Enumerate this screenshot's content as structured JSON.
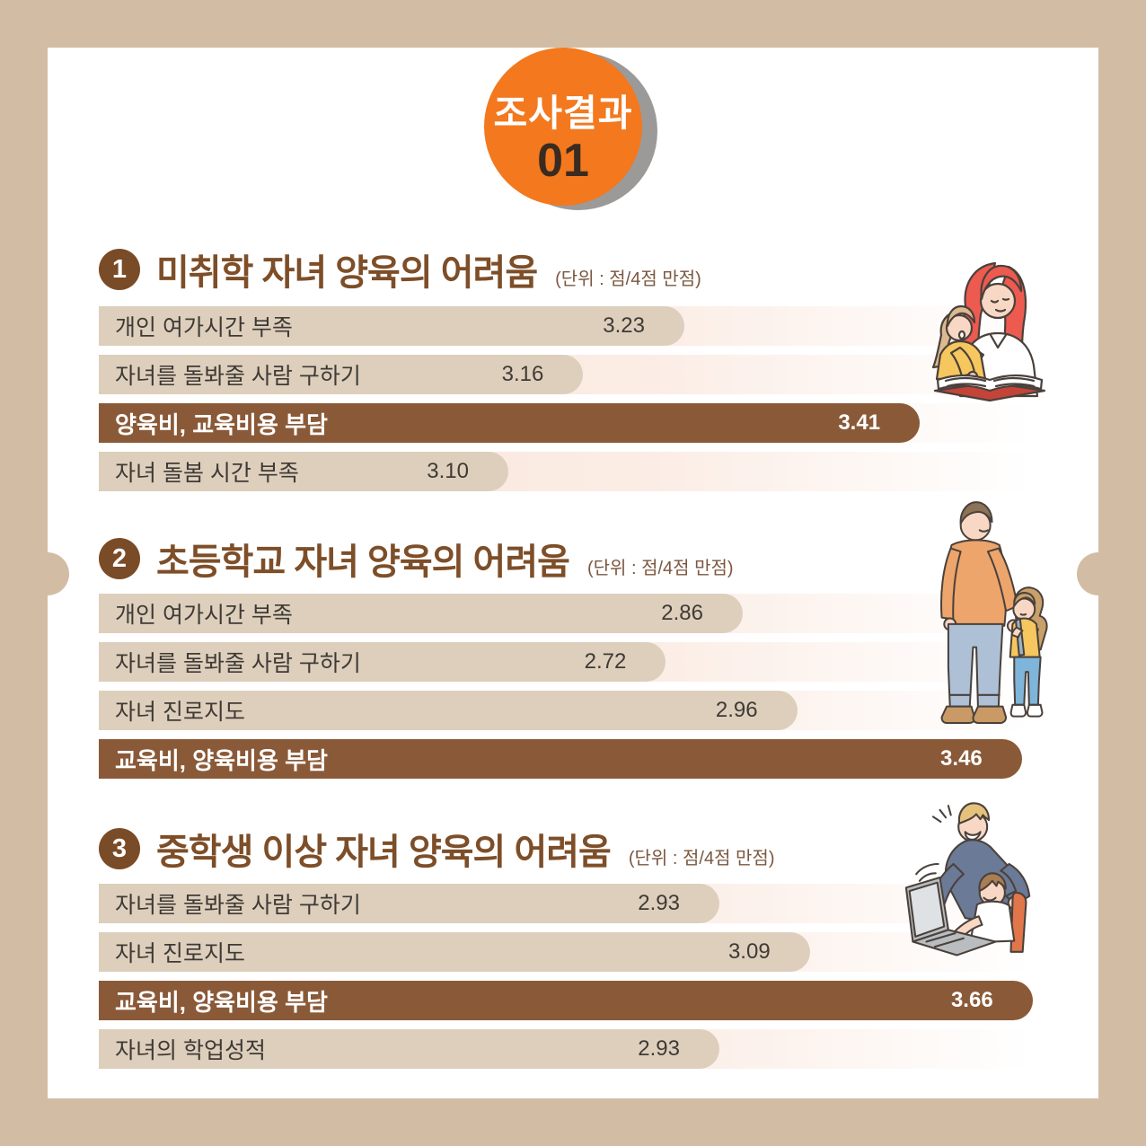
{
  "badge": {
    "label": "조사결과",
    "number": "01"
  },
  "colors": {
    "background": "#d2bda4",
    "card": "#ffffff",
    "accent_orange": "#f3781e",
    "badge_shadow": "#9b9a99",
    "title_brown": "#7d4e28",
    "number_circle_brown": "#7a4b27",
    "highlight_bar_brown": "#8a5a38",
    "bar_fill_beige": "#ddcfbc",
    "bar_text": "#3f3a36",
    "track_pink": "#f7e5dd"
  },
  "chart_data": [
    {
      "type": "bar",
      "section_number": "1",
      "title": "미취학 자녀 양육의 어려움",
      "unit": "(단위 : 점/4점 만점)",
      "value_range": [
        0,
        4
      ],
      "highlight_index": 2,
      "rows": [
        {
          "label": "개인 여가시간 부족",
          "value": 3.23,
          "display": "3.23",
          "width_pct": 60.2,
          "highlight": false
        },
        {
          "label": "자녀를 돌봐줄 사람 구하기",
          "value": 3.16,
          "display": "3.16",
          "width_pct": 49.8,
          "highlight": false
        },
        {
          "label": "양육비, 교육비용 부담",
          "value": 3.41,
          "display": "3.41",
          "width_pct": 84.4,
          "highlight": true
        },
        {
          "label": "자녀 돌봄 시간 부족",
          "value": 3.1,
          "display": "3.10",
          "width_pct": 42.1,
          "highlight": false
        }
      ]
    },
    {
      "type": "bar",
      "section_number": "2",
      "title": "초등학교 자녀 양육의 어려움",
      "unit": "(단위 : 점/4점 만점)",
      "value_range": [
        0,
        4
      ],
      "highlight_index": 3,
      "rows": [
        {
          "label": "개인 여가시간 부족",
          "value": 2.86,
          "display": "2.86",
          "width_pct": 66.2,
          "highlight": false
        },
        {
          "label": "자녀를 돌봐줄 사람 구하기",
          "value": 2.72,
          "display": "2.72",
          "width_pct": 58.3,
          "highlight": false
        },
        {
          "label": "자녀 진로지도",
          "value": 2.96,
          "display": "2.96",
          "width_pct": 71.8,
          "highlight": false
        },
        {
          "label": "교육비, 양육비용 부담",
          "value": 3.46,
          "display": "3.46",
          "width_pct": 94.9,
          "highlight": true
        }
      ]
    },
    {
      "type": "bar",
      "section_number": "3",
      "title": "중학생 이상 자녀 양육의 어려움",
      "unit": "(단위 : 점/4점 만점)",
      "value_range": [
        0,
        4
      ],
      "highlight_index": 2,
      "rows": [
        {
          "label": "자녀를 돌봐줄 사람 구하기",
          "value": 2.93,
          "display": "2.93",
          "width_pct": 63.8,
          "highlight": false
        },
        {
          "label": "자녀 진로지도",
          "value": 3.09,
          "display": "3.09",
          "width_pct": 73.1,
          "highlight": false
        },
        {
          "label": "교육비, 양육비용 부담",
          "value": 3.66,
          "display": "3.66",
          "width_pct": 96.0,
          "highlight": true
        },
        {
          "label": "자녀의 학업성적",
          "value": 2.93,
          "display": "2.93",
          "width_pct": 63.8,
          "highlight": false
        }
      ]
    }
  ],
  "illustrations": [
    {
      "name": "mother-child-reading"
    },
    {
      "name": "father-child-walking"
    },
    {
      "name": "parent-teen-laptop"
    }
  ]
}
